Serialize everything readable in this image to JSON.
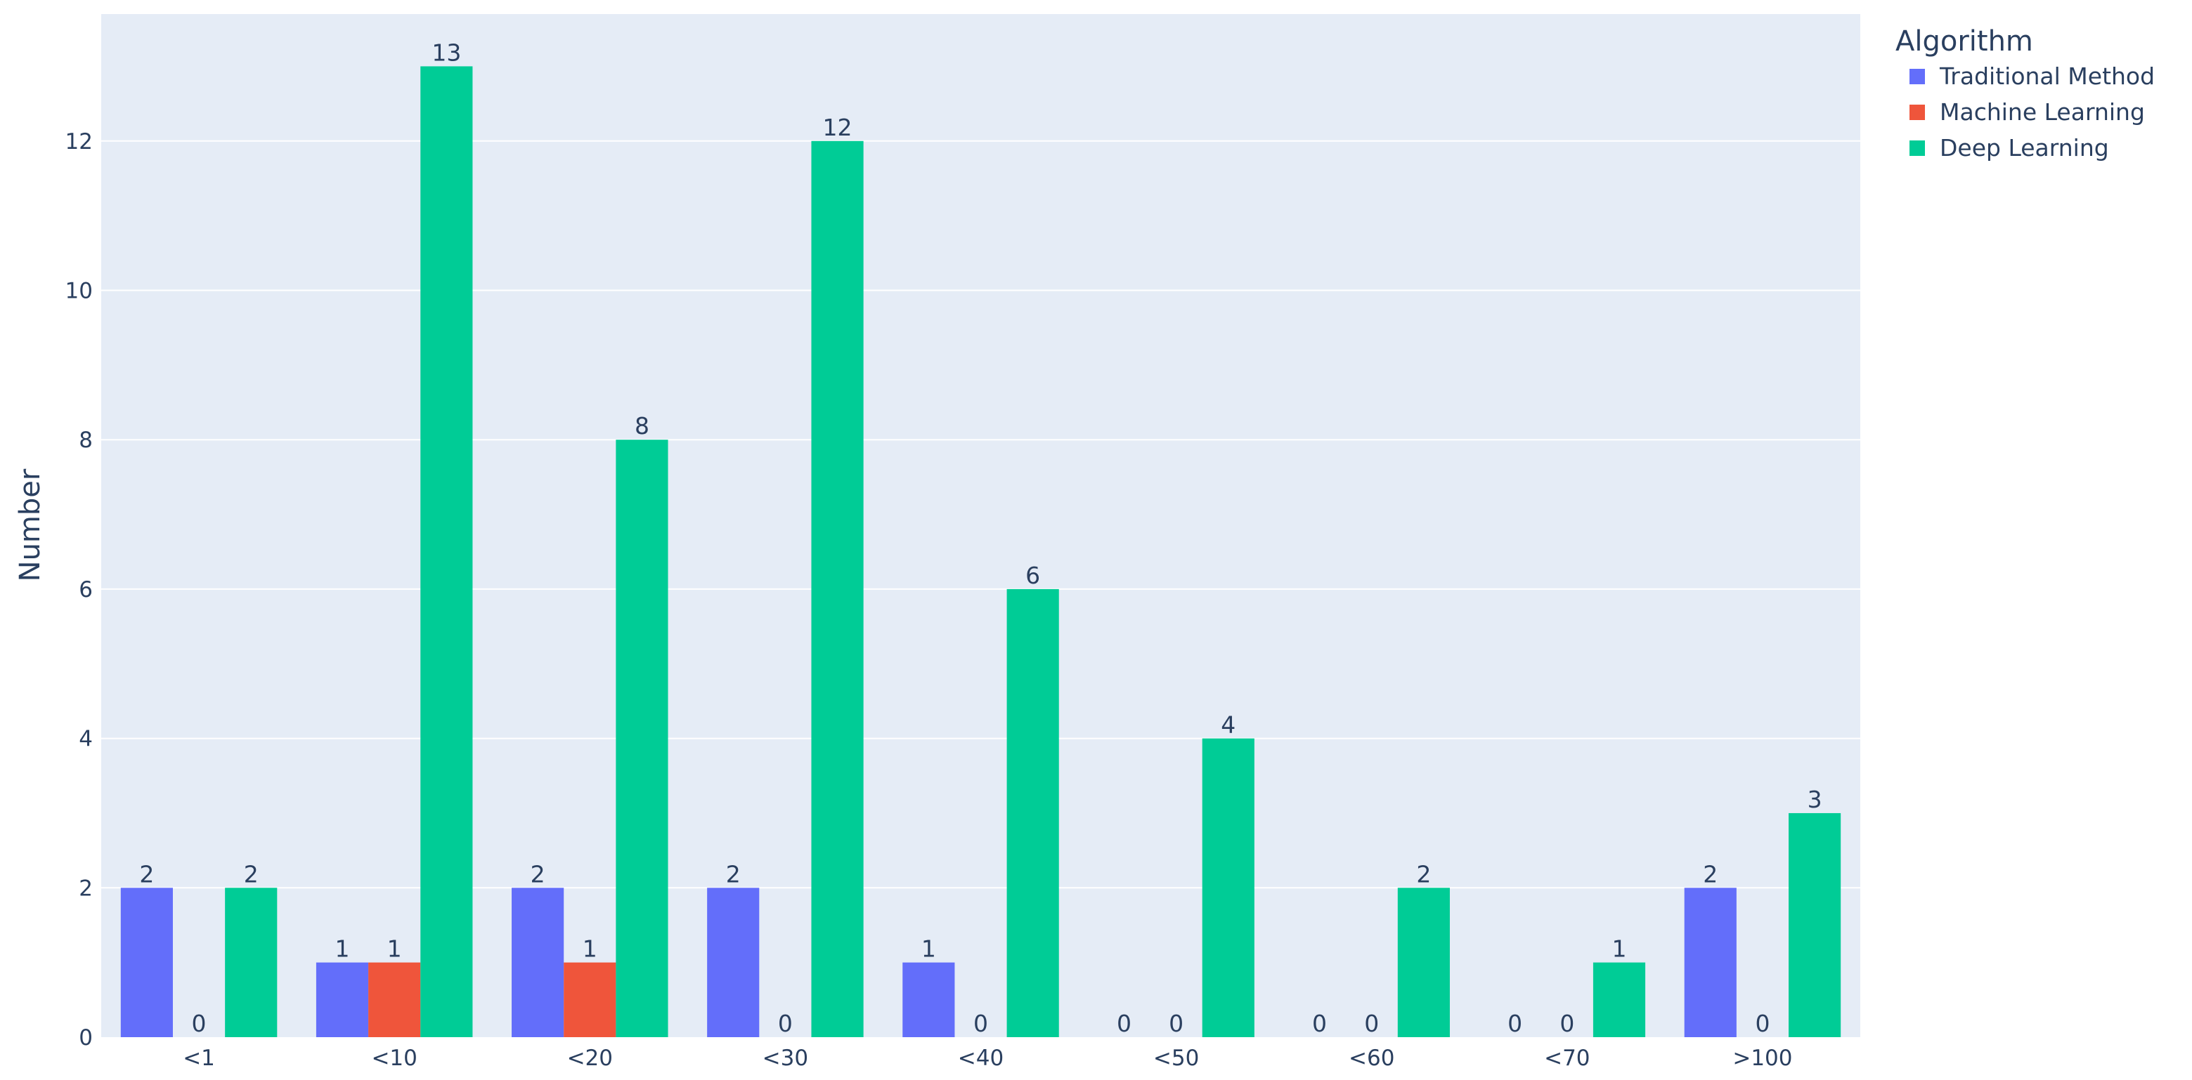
{
  "chart_data": {
    "type": "bar",
    "categories": [
      "<1",
      "<10",
      "<20",
      "<30",
      "<40",
      "<50",
      "<60",
      "<70",
      ">100"
    ],
    "series": [
      {
        "name": "Traditional Method",
        "color": "#636efa",
        "values": [
          2,
          1,
          2,
          2,
          1,
          0,
          0,
          0,
          2
        ]
      },
      {
        "name": "Machine Learning",
        "color": "#ef553b",
        "values": [
          0,
          1,
          1,
          0,
          0,
          0,
          0,
          0,
          0
        ]
      },
      {
        "name": "Deep Learning",
        "color": "#00cc96",
        "values": [
          2,
          13,
          8,
          12,
          6,
          4,
          2,
          1,
          3
        ]
      }
    ],
    "xlabel": "",
    "ylabel": "Number",
    "ylim": [
      0,
      13.7
    ],
    "yticks": [
      0,
      2,
      4,
      6,
      8,
      10,
      12
    ],
    "grid": true,
    "legend_title": "Algorithm",
    "legend_position": "top-right",
    "plot_background": "#e5ecf6",
    "data_labels": true
  }
}
